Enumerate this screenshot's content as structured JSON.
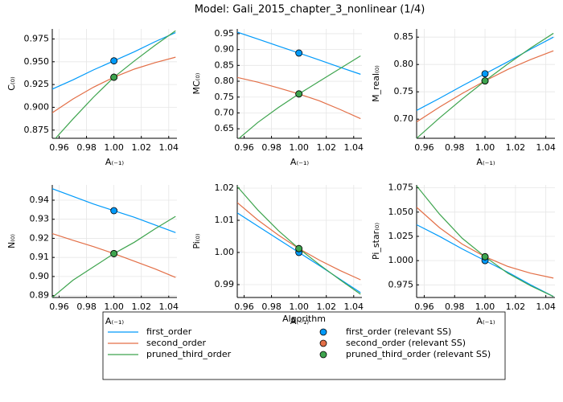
{
  "title": "Model: Gali_2015_chapter_3_nonlinear  (1/4)",
  "legend": {
    "title": "Algorithm"
  },
  "chart_data": [
    {
      "type": "line",
      "xlabel": "A₍₋₁₎",
      "ylabel": "C₍₀₎",
      "x": [
        0.955,
        0.97,
        0.985,
        1.0,
        1.015,
        1.03,
        1.045
      ],
      "xlim": [
        0.955,
        1.046
      ],
      "xticks": [
        0.96,
        0.98,
        {
          "value": 1,
          "label": "1.00"
        },
        1.02,
        1.04
      ],
      "ylim": [
        0.866,
        0.986
      ],
      "yticks": [
        0.875,
        {
          "value": 0.9,
          "label": "0.900"
        },
        0.925,
        {
          "value": 0.95,
          "label": "0.950"
        },
        0.975
      ],
      "grid": true,
      "series": [
        {
          "name": "first_order",
          "color": "#009afa",
          "values": [
            0.92,
            0.93,
            0.941,
            0.951,
            0.961,
            0.972,
            0.982
          ]
        },
        {
          "name": "second_order",
          "color": "#e36f47",
          "values": [
            0.894,
            0.909,
            0.922,
            0.933,
            0.942,
            0.949,
            0.955
          ]
        },
        {
          "name": "pruned_third_order",
          "color": "#3ea44e",
          "values": [
            0.862,
            0.887,
            0.911,
            0.933,
            0.951,
            0.968,
            0.984
          ]
        },
        {
          "name": "first_order (relevant SS)",
          "type": "scatter",
          "color": "#009afa",
          "x": [
            1
          ],
          "values": [
            0.951
          ]
        },
        {
          "name": "second_order (relevant SS)",
          "type": "scatter",
          "color": "#e36f47",
          "x": [
            1
          ],
          "values": [
            0.933
          ]
        },
        {
          "name": "pruned_third_order (relevant SS)",
          "type": "scatter",
          "color": "#3ea44e",
          "x": [
            1
          ],
          "values": [
            0.933
          ]
        }
      ]
    },
    {
      "type": "line",
      "xlabel": "A₍₋₁₎",
      "ylabel": "MC₍₀₎",
      "x": [
        0.955,
        0.97,
        0.985,
        1.0,
        1.015,
        1.03,
        1.045
      ],
      "xlim": [
        0.955,
        1.046
      ],
      "xticks": [
        0.96,
        0.98,
        {
          "value": 1,
          "label": "1.00"
        },
        1.02,
        1.04
      ],
      "ylim": [
        0.62,
        0.965
      ],
      "yticks": [
        0.65,
        {
          "value": 0.7,
          "label": "0.70"
        },
        0.75,
        {
          "value": 0.8,
          "label": "0.80"
        },
        0.85,
        {
          "value": 0.9,
          "label": "0.90"
        },
        0.95
      ],
      "grid": true,
      "series": [
        {
          "name": "first_order",
          "color": "#009afa",
          "values": [
            0.955,
            0.933,
            0.911,
            0.889,
            0.867,
            0.844,
            0.822
          ]
        },
        {
          "name": "second_order",
          "color": "#e36f47",
          "values": [
            0.812,
            0.797,
            0.779,
            0.76,
            0.738,
            0.711,
            0.682
          ]
        },
        {
          "name": "pruned_third_order",
          "color": "#3ea44e",
          "values": [
            0.615,
            0.67,
            0.717,
            0.76,
            0.8,
            0.84,
            0.88
          ]
        },
        {
          "name": "first_order (relevant SS)",
          "type": "scatter",
          "color": "#009afa",
          "x": [
            1
          ],
          "values": [
            0.889
          ]
        },
        {
          "name": "second_order (relevant SS)",
          "type": "scatter",
          "color": "#e36f47",
          "x": [
            1
          ],
          "values": [
            0.76
          ]
        },
        {
          "name": "pruned_third_order (relevant SS)",
          "type": "scatter",
          "color": "#3ea44e",
          "x": [
            1
          ],
          "values": [
            0.76
          ]
        }
      ]
    },
    {
      "type": "line",
      "xlabel": "A₍₋₁₎",
      "ylabel": "M_real₍₀₎",
      "x": [
        0.955,
        0.97,
        0.985,
        1.0,
        1.015,
        1.03,
        1.045
      ],
      "xlim": [
        0.955,
        1.046
      ],
      "xticks": [
        0.96,
        0.98,
        {
          "value": 1,
          "label": "1.00"
        },
        1.02,
        1.04
      ],
      "ylim": [
        0.665,
        0.865
      ],
      "yticks": [
        {
          "value": 0.7,
          "label": "0.70"
        },
        0.75,
        {
          "value": 0.8,
          "label": "0.80"
        },
        0.85
      ],
      "grid": true,
      "series": [
        {
          "name": "first_order",
          "color": "#009afa",
          "values": [
            0.716,
            0.738,
            0.761,
            0.783,
            0.805,
            0.828,
            0.85
          ]
        },
        {
          "name": "second_order",
          "color": "#e36f47",
          "values": [
            0.695,
            0.722,
            0.747,
            0.77,
            0.791,
            0.809,
            0.825
          ]
        },
        {
          "name": "pruned_third_order",
          "color": "#3ea44e",
          "values": [
            0.665,
            0.702,
            0.737,
            0.77,
            0.801,
            0.83,
            0.857
          ]
        },
        {
          "name": "first_order (relevant SS)",
          "type": "scatter",
          "color": "#009afa",
          "x": [
            1
          ],
          "values": [
            0.783
          ]
        },
        {
          "name": "second_order (relevant SS)",
          "type": "scatter",
          "color": "#e36f47",
          "x": [
            1
          ],
          "values": [
            0.77
          ]
        },
        {
          "name": "pruned_third_order (relevant SS)",
          "type": "scatter",
          "color": "#3ea44e",
          "x": [
            1
          ],
          "values": [
            0.77
          ]
        }
      ]
    },
    {
      "type": "line",
      "xlabel": "A₍₋₁₎",
      "ylabel": "N₍₀₎",
      "x": [
        0.955,
        0.97,
        0.985,
        1.0,
        1.015,
        1.03,
        1.045
      ],
      "xlim": [
        0.955,
        1.046
      ],
      "xticks": [
        0.96,
        0.98,
        {
          "value": 1,
          "label": "1.00"
        },
        1.02,
        1.04
      ],
      "ylim": [
        0.889,
        0.948
      ],
      "yticks": [
        0.89,
        {
          "value": 0.9,
          "label": "0.90"
        },
        0.91,
        0.92,
        0.93,
        0.94
      ],
      "grid": true,
      "series": [
        {
          "name": "first_order",
          "color": "#009afa",
          "values": [
            0.946,
            0.942,
            0.938,
            0.9345,
            0.931,
            0.927,
            0.923
          ]
        },
        {
          "name": "second_order",
          "color": "#e36f47",
          "values": [
            0.9225,
            0.919,
            0.9157,
            0.912,
            0.908,
            0.904,
            0.8995
          ]
        },
        {
          "name": "pruned_third_order",
          "color": "#3ea44e",
          "values": [
            0.889,
            0.898,
            0.905,
            0.912,
            0.918,
            0.925,
            0.9315
          ]
        },
        {
          "name": "first_order (relevant SS)",
          "type": "scatter",
          "color": "#009afa",
          "x": [
            1
          ],
          "values": [
            0.9345
          ]
        },
        {
          "name": "second_order (relevant SS)",
          "type": "scatter",
          "color": "#e36f47",
          "x": [
            1
          ],
          "values": [
            0.912
          ]
        },
        {
          "name": "pruned_third_order (relevant SS)",
          "type": "scatter",
          "color": "#3ea44e",
          "x": [
            1
          ],
          "values": [
            0.912
          ]
        }
      ]
    },
    {
      "type": "line",
      "xlabel": "A₍₋₁₎",
      "ylabel": "Pi₍₀₎",
      "x": [
        0.955,
        0.97,
        0.985,
        1.0,
        1.015,
        1.03,
        1.045
      ],
      "xlim": [
        0.955,
        1.046
      ],
      "xticks": [
        0.96,
        0.98,
        {
          "value": 1,
          "label": "1.00"
        },
        1.02,
        1.04
      ],
      "ylim": [
        0.986,
        1.021
      ],
      "yticks": [
        0.99,
        {
          "value": 1,
          "label": "1.00"
        },
        1.01,
        1.02
      ],
      "grid": true,
      "series": [
        {
          "name": "first_order",
          "color": "#009afa",
          "values": [
            1.0123,
            1.0082,
            1.0041,
            1.0,
            0.9959,
            0.9917,
            0.9875
          ]
        },
        {
          "name": "second_order",
          "color": "#e36f47",
          "values": [
            1.0155,
            1.0101,
            1.0054,
            1.0012,
            0.9976,
            0.9944,
            0.9915
          ]
        },
        {
          "name": "pruned_third_order",
          "color": "#3ea44e",
          "values": [
            1.0205,
            1.0132,
            1.0068,
            1.0012,
            0.9962,
            0.9915,
            0.987
          ]
        },
        {
          "name": "first_order (relevant SS)",
          "type": "scatter",
          "color": "#009afa",
          "x": [
            1
          ],
          "values": [
            1.0
          ]
        },
        {
          "name": "second_order (relevant SS)",
          "type": "scatter",
          "color": "#e36f47",
          "x": [
            1
          ],
          "values": [
            1.0012
          ]
        },
        {
          "name": "pruned_third_order (relevant SS)",
          "type": "scatter",
          "color": "#3ea44e",
          "x": [
            1
          ],
          "values": [
            1.0012
          ]
        }
      ]
    },
    {
      "type": "line",
      "xlabel": "A₍₋₁₎",
      "ylabel": "Pi_star₍₀₎",
      "x": [
        0.955,
        0.97,
        0.985,
        1.0,
        1.015,
        1.03,
        1.045
      ],
      "xlim": [
        0.955,
        1.046
      ],
      "xticks": [
        0.96,
        0.98,
        {
          "value": 1,
          "label": "1.00"
        },
        1.02,
        1.04
      ],
      "ylim": [
        0.962,
        1.078
      ],
      "yticks": [
        0.975,
        {
          "value": 1,
          "label": "1.000"
        },
        1.025,
        {
          "value": 1.05,
          "label": "1.050"
        },
        1.075
      ],
      "grid": true,
      "series": [
        {
          "name": "first_order",
          "color": "#009afa",
          "values": [
            1.037,
            1.025,
            1.012,
            1.0,
            0.988,
            0.975,
            0.963
          ]
        },
        {
          "name": "second_order",
          "color": "#e36f47",
          "values": [
            1.055,
            1.034,
            1.017,
            1.004,
            0.994,
            0.987,
            0.982
          ]
        },
        {
          "name": "pruned_third_order",
          "color": "#3ea44e",
          "values": [
            1.077,
            1.048,
            1.023,
            1.004,
            0.987,
            0.974,
            0.963
          ]
        },
        {
          "name": "first_order (relevant SS)",
          "type": "scatter",
          "color": "#009afa",
          "x": [
            1
          ],
          "values": [
            1.0
          ]
        },
        {
          "name": "second_order (relevant SS)",
          "type": "scatter",
          "color": "#e36f47",
          "x": [
            1
          ],
          "values": [
            1.004
          ]
        },
        {
          "name": "pruned_third_order (relevant SS)",
          "type": "scatter",
          "color": "#3ea44e",
          "x": [
            1
          ],
          "values": [
            1.004
          ]
        }
      ]
    }
  ]
}
